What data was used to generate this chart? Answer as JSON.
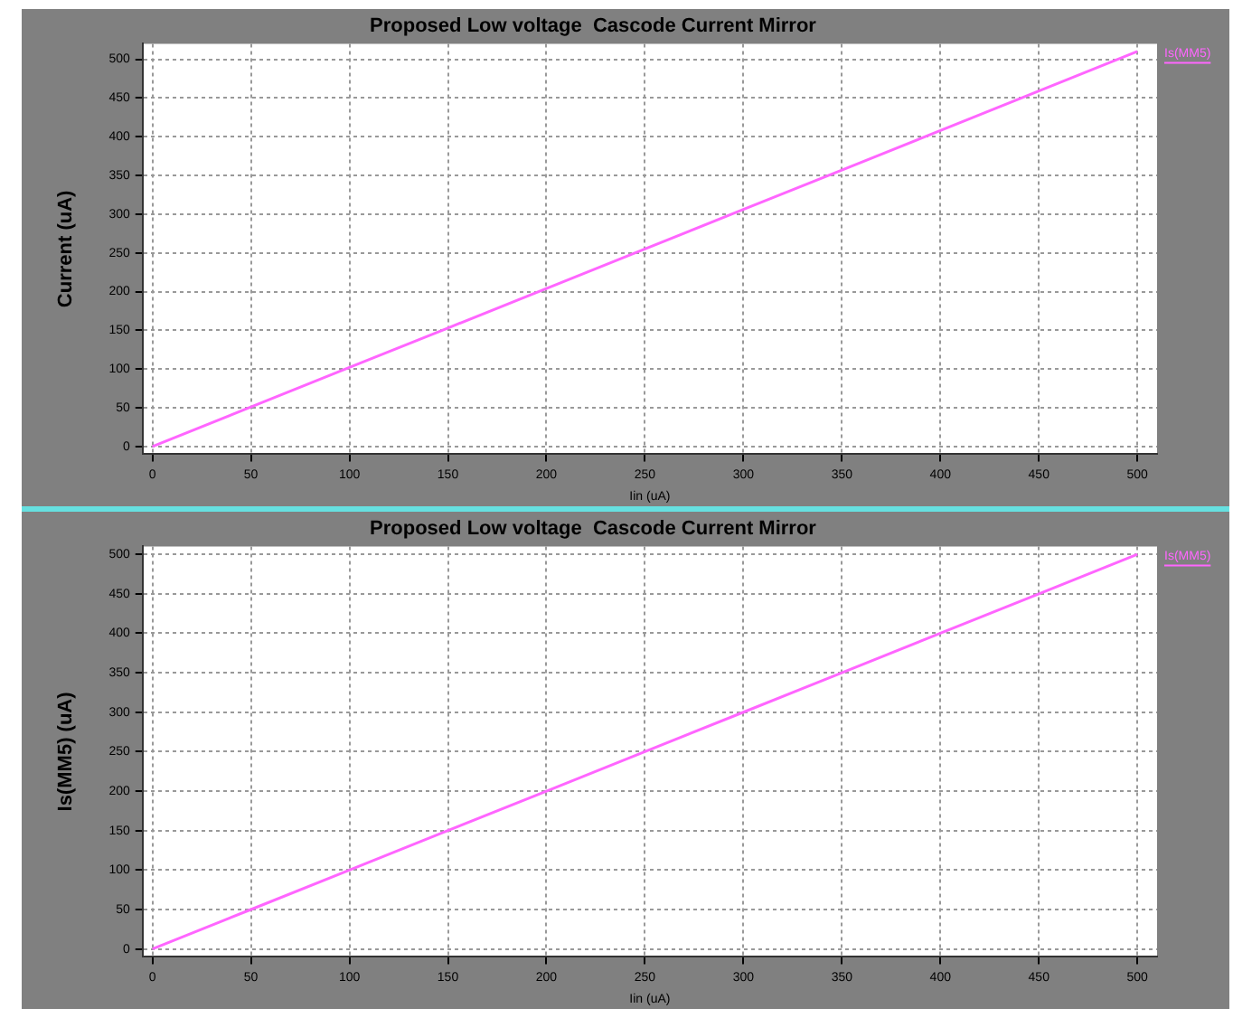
{
  "chart_data": [
    {
      "type": "line",
      "title": "Proposed Low voltage  Cascode Current Mirror",
      "xlabel": "Iin (uA)",
      "ylabel": "Current (uA)",
      "x": [
        0,
        50,
        100,
        150,
        200,
        250,
        300,
        350,
        400,
        450,
        500
      ],
      "series": [
        {
          "name": "Is(MM5)",
          "color": "#ff66ff",
          "values": [
            0,
            51,
            102,
            153,
            204,
            255,
            306,
            357,
            408,
            459,
            510
          ]
        }
      ],
      "xlim": [
        -5,
        510
      ],
      "xticks": [
        0,
        50,
        100,
        150,
        200,
        250,
        300,
        350,
        400,
        450,
        500
      ],
      "ylim": [
        -10,
        520
      ],
      "yticks": [
        0,
        50,
        100,
        150,
        200,
        250,
        300,
        350,
        400,
        450,
        500
      ],
      "grid": true,
      "legend": "top right",
      "marker": "none",
      "line_style": "solid"
    },
    {
      "type": "line",
      "title": "Proposed Low voltage  Cascode Current Mirror",
      "xlabel": "Iin (uA)",
      "ylabel": "Is(MM5) (uA)",
      "x": [
        0,
        50,
        100,
        150,
        200,
        250,
        300,
        350,
        400,
        450,
        500
      ],
      "series": [
        {
          "name": "Is(MM5)",
          "color": "#ff66ff",
          "values": [
            0,
            50,
            100,
            150,
            200,
            250,
            300,
            350,
            400,
            450,
            500
          ]
        }
      ],
      "xlim": [
        -5,
        510
      ],
      "xticks": [
        0,
        50,
        100,
        150,
        200,
        250,
        300,
        350,
        400,
        450,
        500
      ],
      "ylim": [
        -10,
        510
      ],
      "yticks": [
        0,
        50,
        100,
        150,
        200,
        250,
        300,
        350,
        400,
        450,
        500
      ],
      "grid": true,
      "legend": "top right",
      "marker": "none",
      "line_style": "solid"
    }
  ]
}
